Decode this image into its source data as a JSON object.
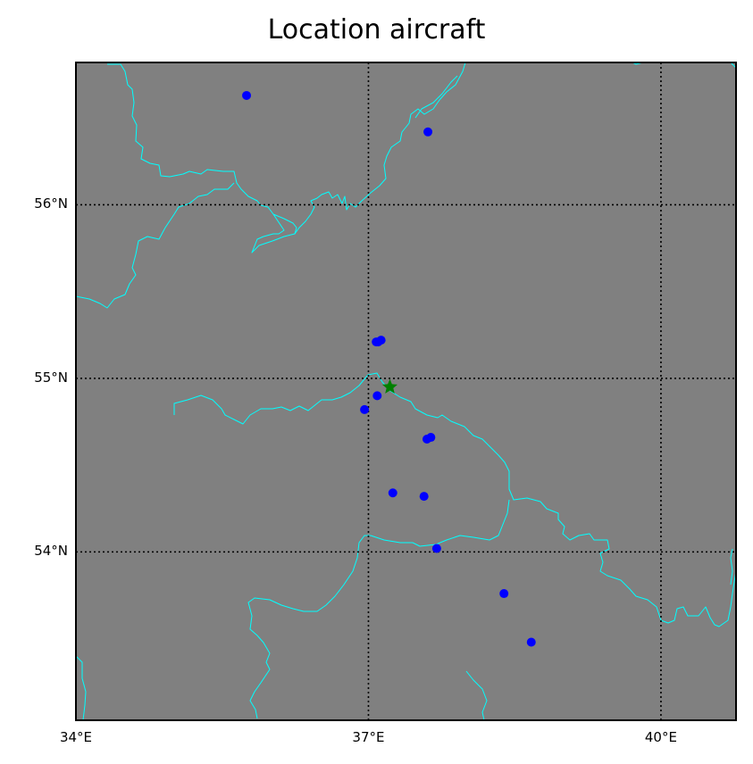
{
  "title": "Location aircraft",
  "map": {
    "background_color": "#808080",
    "border_color": "#00ffff",
    "grid_color": "#000000",
    "grid_style": "dotted",
    "lon_range": [
      34.0,
      40.77
    ],
    "lat_range": [
      53.03,
      56.82
    ],
    "lat_ticks": [
      {
        "value": 56,
        "label": "56°N"
      },
      {
        "value": 55,
        "label": "55°N"
      },
      {
        "value": 54,
        "label": "54°N"
      }
    ],
    "lon_ticks": [
      {
        "value": 34,
        "label": "34°E"
      },
      {
        "value": 37,
        "label": "37°E"
      },
      {
        "value": 40,
        "label": "40°E"
      }
    ]
  },
  "aircraft_points": {
    "color": "#0000ff",
    "points": [
      {
        "lon": 35.75,
        "lat": 56.63
      },
      {
        "lon": 37.61,
        "lat": 56.42
      },
      {
        "lon": 37.08,
        "lat": 55.21
      },
      {
        "lon": 37.13,
        "lat": 55.22
      },
      {
        "lon": 37.1,
        "lat": 55.21
      },
      {
        "lon": 37.09,
        "lat": 54.9
      },
      {
        "lon": 36.96,
        "lat": 54.82
      },
      {
        "lon": 37.6,
        "lat": 54.65
      },
      {
        "lon": 37.64,
        "lat": 54.66
      },
      {
        "lon": 37.25,
        "lat": 54.34
      },
      {
        "lon": 37.57,
        "lat": 54.32
      },
      {
        "lon": 37.7,
        "lat": 54.02
      },
      {
        "lon": 38.39,
        "lat": 53.76
      },
      {
        "lon": 38.67,
        "lat": 53.48
      }
    ]
  },
  "reference_marker": {
    "shape": "star",
    "color": "#008000",
    "lon": 37.22,
    "lat": 54.95
  }
}
